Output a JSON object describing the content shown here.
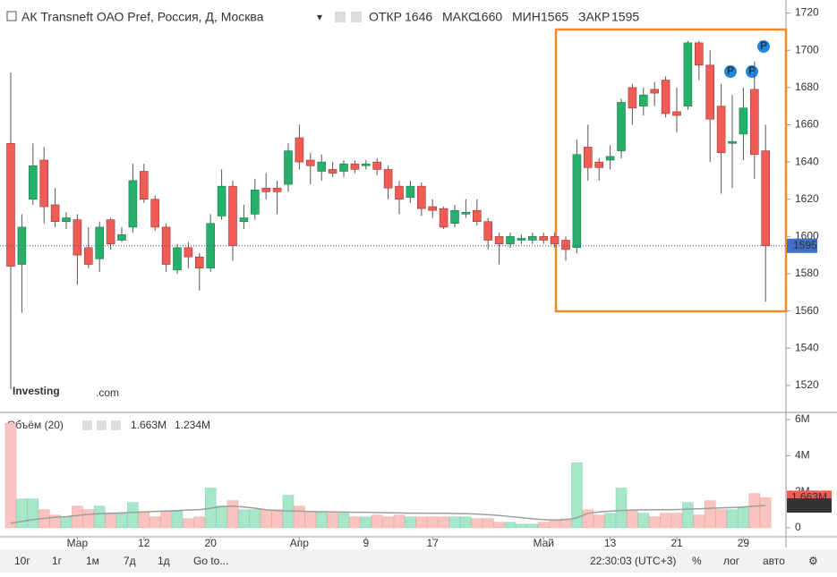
{
  "header": {
    "title": "АК Transneft ОАО Pref, Россия, Д, Москва",
    "open_label": "ОТКР",
    "high_label": "МАКС",
    "low_label": "МИН",
    "close_label": "ЗАКР",
    "logo": "Investing",
    "logo_suffix": ".com",
    "event_marker": "P"
  },
  "volume_legend": "Объём (20)",
  "toolbar": {
    "ranges": [
      "10г",
      "1г",
      "1м",
      "7д",
      "1д"
    ],
    "goto": "Go to...",
    "time": "22:30:03 (UTC+3)",
    "percent": "%",
    "log": "лог",
    "auto": "авто"
  },
  "chart_data": [
    {
      "type": "candlestick",
      "up_color": "#26b06b",
      "down_color": "#ef5b55",
      "grid": false,
      "categories": [
        null,
        null,
        null,
        null,
        null,
        null,
        "Мар",
        null,
        null,
        null,
        null,
        null,
        "12",
        null,
        null,
        null,
        null,
        null,
        "20",
        null,
        null,
        null,
        null,
        null,
        null,
        null,
        "Апр",
        null,
        null,
        null,
        null,
        null,
        "9",
        null,
        null,
        null,
        null,
        null,
        "17",
        null,
        null,
        null,
        null,
        null,
        null,
        null,
        null,
        null,
        "Май",
        null,
        null,
        null,
        null,
        null,
        "13",
        null,
        null,
        null,
        null,
        null,
        "21",
        null,
        null,
        null,
        null,
        null,
        "29",
        null,
        null
      ],
      "open": [
        1650,
        1585,
        1620,
        1641,
        1617,
        1608,
        1609,
        1594,
        1588,
        1609,
        1598,
        1605,
        1635,
        1620,
        1605,
        1582,
        1594,
        1589,
        1583,
        1611,
        1627,
        1608,
        1612,
        1626,
        1626,
        1628,
        1653,
        1641,
        1635,
        1636,
        1635,
        1639,
        1638,
        1640,
        1636,
        1627,
        1621,
        1627,
        1616,
        1615,
        1607,
        1612,
        1614,
        1608,
        1600,
        1596,
        1598,
        1598,
        1600,
        1600,
        1598,
        1594,
        1648,
        1640,
        1641,
        1646,
        1680,
        1670,
        1679,
        1684,
        1667,
        1670,
        1704,
        1692,
        1670,
        1650,
        1655,
        1679,
        1646
      ],
      "high": [
        1688,
        1612,
        1650,
        1648,
        1626,
        1613,
        1612,
        1605,
        1608,
        1610,
        1605,
        1639,
        1639,
        1622,
        1607,
        1596,
        1597,
        1591,
        1612,
        1636,
        1630,
        1617,
        1631,
        1634,
        1630,
        1650,
        1660,
        1645,
        1644,
        1640,
        1641,
        1641,
        1641,
        1642,
        1638,
        1630,
        1630,
        1629,
        1620,
        1616,
        1617,
        1620,
        1620,
        1610,
        1602,
        1602,
        1601,
        1602,
        1602,
        1602,
        1600,
        1652,
        1660,
        1642,
        1649,
        1674,
        1682,
        1680,
        1683,
        1686,
        1680,
        1705,
        1705,
        1700,
        1682,
        1676,
        1680,
        1694,
        1660
      ],
      "low": [
        1518,
        1559,
        1617,
        1607,
        1605,
        1604,
        1574,
        1583,
        1581,
        1593,
        1597,
        1602,
        1618,
        1603,
        1581,
        1580,
        1583,
        1571,
        1581,
        1609,
        1587,
        1604,
        1609,
        1620,
        1612,
        1624,
        1636,
        1628,
        1630,
        1632,
        1632,
        1634,
        1636,
        1633,
        1620,
        1612,
        1618,
        1611,
        1610,
        1604,
        1605,
        1610,
        1606,
        1593,
        1585,
        1594,
        1596,
        1596,
        1596,
        1594,
        1587,
        1591,
        1630,
        1630,
        1636,
        1642,
        1660,
        1665,
        1670,
        1664,
        1656,
        1668,
        1684,
        1640,
        1623,
        1626,
        1641,
        1631,
        1565
      ],
      "close": [
        1584,
        1605,
        1638,
        1616,
        1608,
        1610,
        1590,
        1585,
        1605,
        1596,
        1601,
        1630,
        1620,
        1605,
        1585,
        1594,
        1589,
        1583,
        1607,
        1627,
        1595,
        1610,
        1625,
        1624,
        1624,
        1646,
        1640,
        1638,
        1640,
        1634,
        1639,
        1636,
        1639,
        1636,
        1626,
        1620,
        1627,
        1615,
        1614,
        1605,
        1614,
        1613,
        1608,
        1598,
        1596,
        1600,
        1599,
        1600,
        1598,
        1596,
        1593,
        1644,
        1637,
        1637,
        1643,
        1672,
        1669,
        1676,
        1677,
        1666,
        1665,
        1704,
        1692,
        1663,
        1645,
        1651,
        1669,
        1644,
        1595
      ],
      "ylim": [
        1506,
        1727
      ],
      "yticks": [
        1520,
        1540,
        1560,
        1580,
        1600,
        1620,
        1640,
        1660,
        1680,
        1700,
        1720
      ]
    },
    {
      "type": "volume",
      "up_color": "#a6e6c9",
      "down_color": "#f9c3bf",
      "ma_color": "#9e9e9e",
      "values": [
        5800000,
        1600000,
        1600000,
        1000000,
        700000,
        600000,
        1200000,
        1000000,
        1200000,
        800000,
        800000,
        1400000,
        900000,
        600000,
        900000,
        900000,
        500000,
        600000,
        2200000,
        1200000,
        1500000,
        1000000,
        1000000,
        1000000,
        1000000,
        1800000,
        1200000,
        900000,
        900000,
        800000,
        800000,
        600000,
        600000,
        700000,
        600000,
        700000,
        600000,
        600000,
        600000,
        600000,
        600000,
        600000,
        500000,
        500000,
        300000,
        300000,
        200000,
        200000,
        300000,
        400000,
        500000,
        3600000,
        1000000,
        700000,
        800000,
        2200000,
        1000000,
        800000,
        600000,
        800000,
        800000,
        1400000,
        700000,
        1500000,
        1000000,
        1000000,
        1100000,
        1900000,
        1663000
      ],
      "value_labels": {
        "68": "1.663M"
      },
      "ma": [
        250000,
        350000,
        450000,
        520000,
        580000,
        620000,
        680000,
        740000,
        780000,
        800000,
        820000,
        850000,
        880000,
        900000,
        930000,
        950000,
        980000,
        1000000,
        1080000,
        1180000,
        1200000,
        1150000,
        1080000,
        1000000,
        950000,
        930000,
        920000,
        900000,
        890000,
        880000,
        870000,
        860000,
        850000,
        840000,
        830000,
        820000,
        810000,
        810000,
        800000,
        800000,
        790000,
        780000,
        760000,
        720000,
        680000,
        620000,
        560000,
        500000,
        450000,
        430000,
        440000,
        550000,
        800000,
        880000,
        920000,
        960000,
        980000,
        990000,
        1000000,
        1000000,
        1010000,
        1030000,
        1050000,
        1080000,
        1100000,
        1120000,
        1150000,
        1200000,
        1234000
      ],
      "ma_label": "1.234M",
      "ylim": [
        -500000,
        6350000
      ],
      "yticks": [
        {
          "value": 0,
          "label": "0"
        },
        {
          "value": 2000000,
          "label": "2M"
        },
        {
          "value": 4000000,
          "label": "4M"
        },
        {
          "value": 6000000,
          "label": "6M"
        }
      ]
    }
  ]
}
